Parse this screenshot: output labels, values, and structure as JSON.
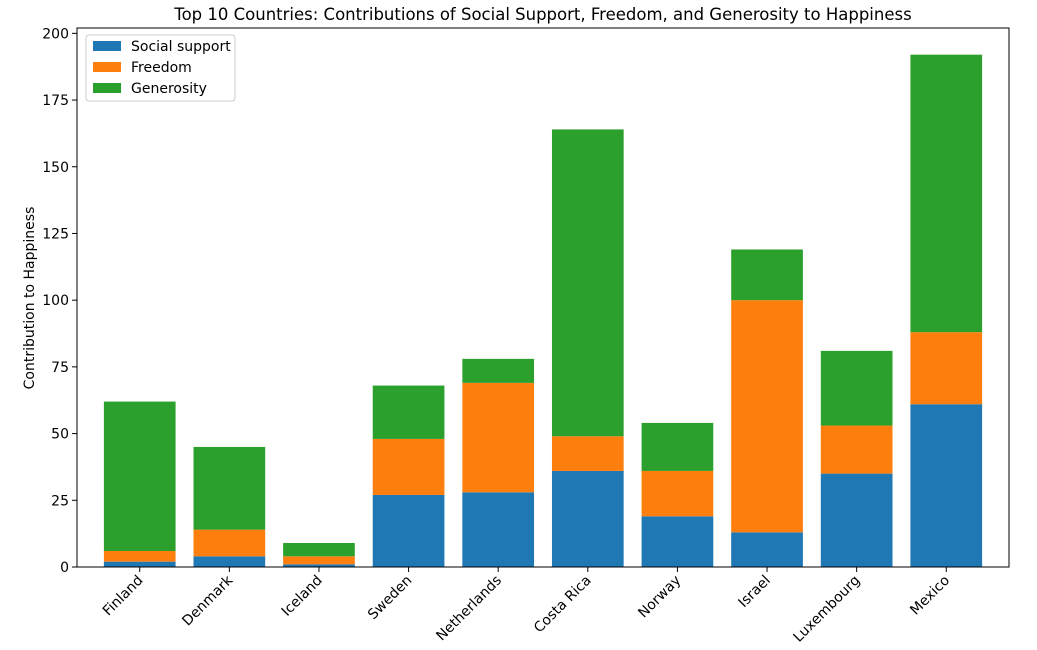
{
  "chart_data": {
    "type": "bar",
    "stacked": true,
    "title": "Top 10 Countries: Contributions of Social Support, Freedom, and Generosity to Happiness",
    "xlabel": "",
    "ylabel": "Contribution to Happiness",
    "ylim": [
      0,
      202
    ],
    "yticks": [
      0,
      25,
      50,
      75,
      100,
      125,
      150,
      175,
      200
    ],
    "grid": false,
    "legend_position": "top-left",
    "categories": [
      "Finland",
      "Denmark",
      "Iceland",
      "Sweden",
      "Netherlands",
      "Costa Rica",
      "Norway",
      "Israel",
      "Luxembourg",
      "Mexico"
    ],
    "series": [
      {
        "name": "Social support",
        "color": "#1f77b4",
        "values": [
          2,
          4,
          1,
          27,
          28,
          36,
          19,
          13,
          35,
          61
        ]
      },
      {
        "name": "Freedom",
        "color": "#ff7f0e",
        "values": [
          4,
          10,
          3,
          21,
          41,
          13,
          17,
          87,
          18,
          27
        ]
      },
      {
        "name": "Generosity",
        "color": "#2ca02c",
        "values": [
          56,
          31,
          5,
          20,
          9,
          115,
          18,
          19,
          28,
          104
        ]
      }
    ]
  }
}
